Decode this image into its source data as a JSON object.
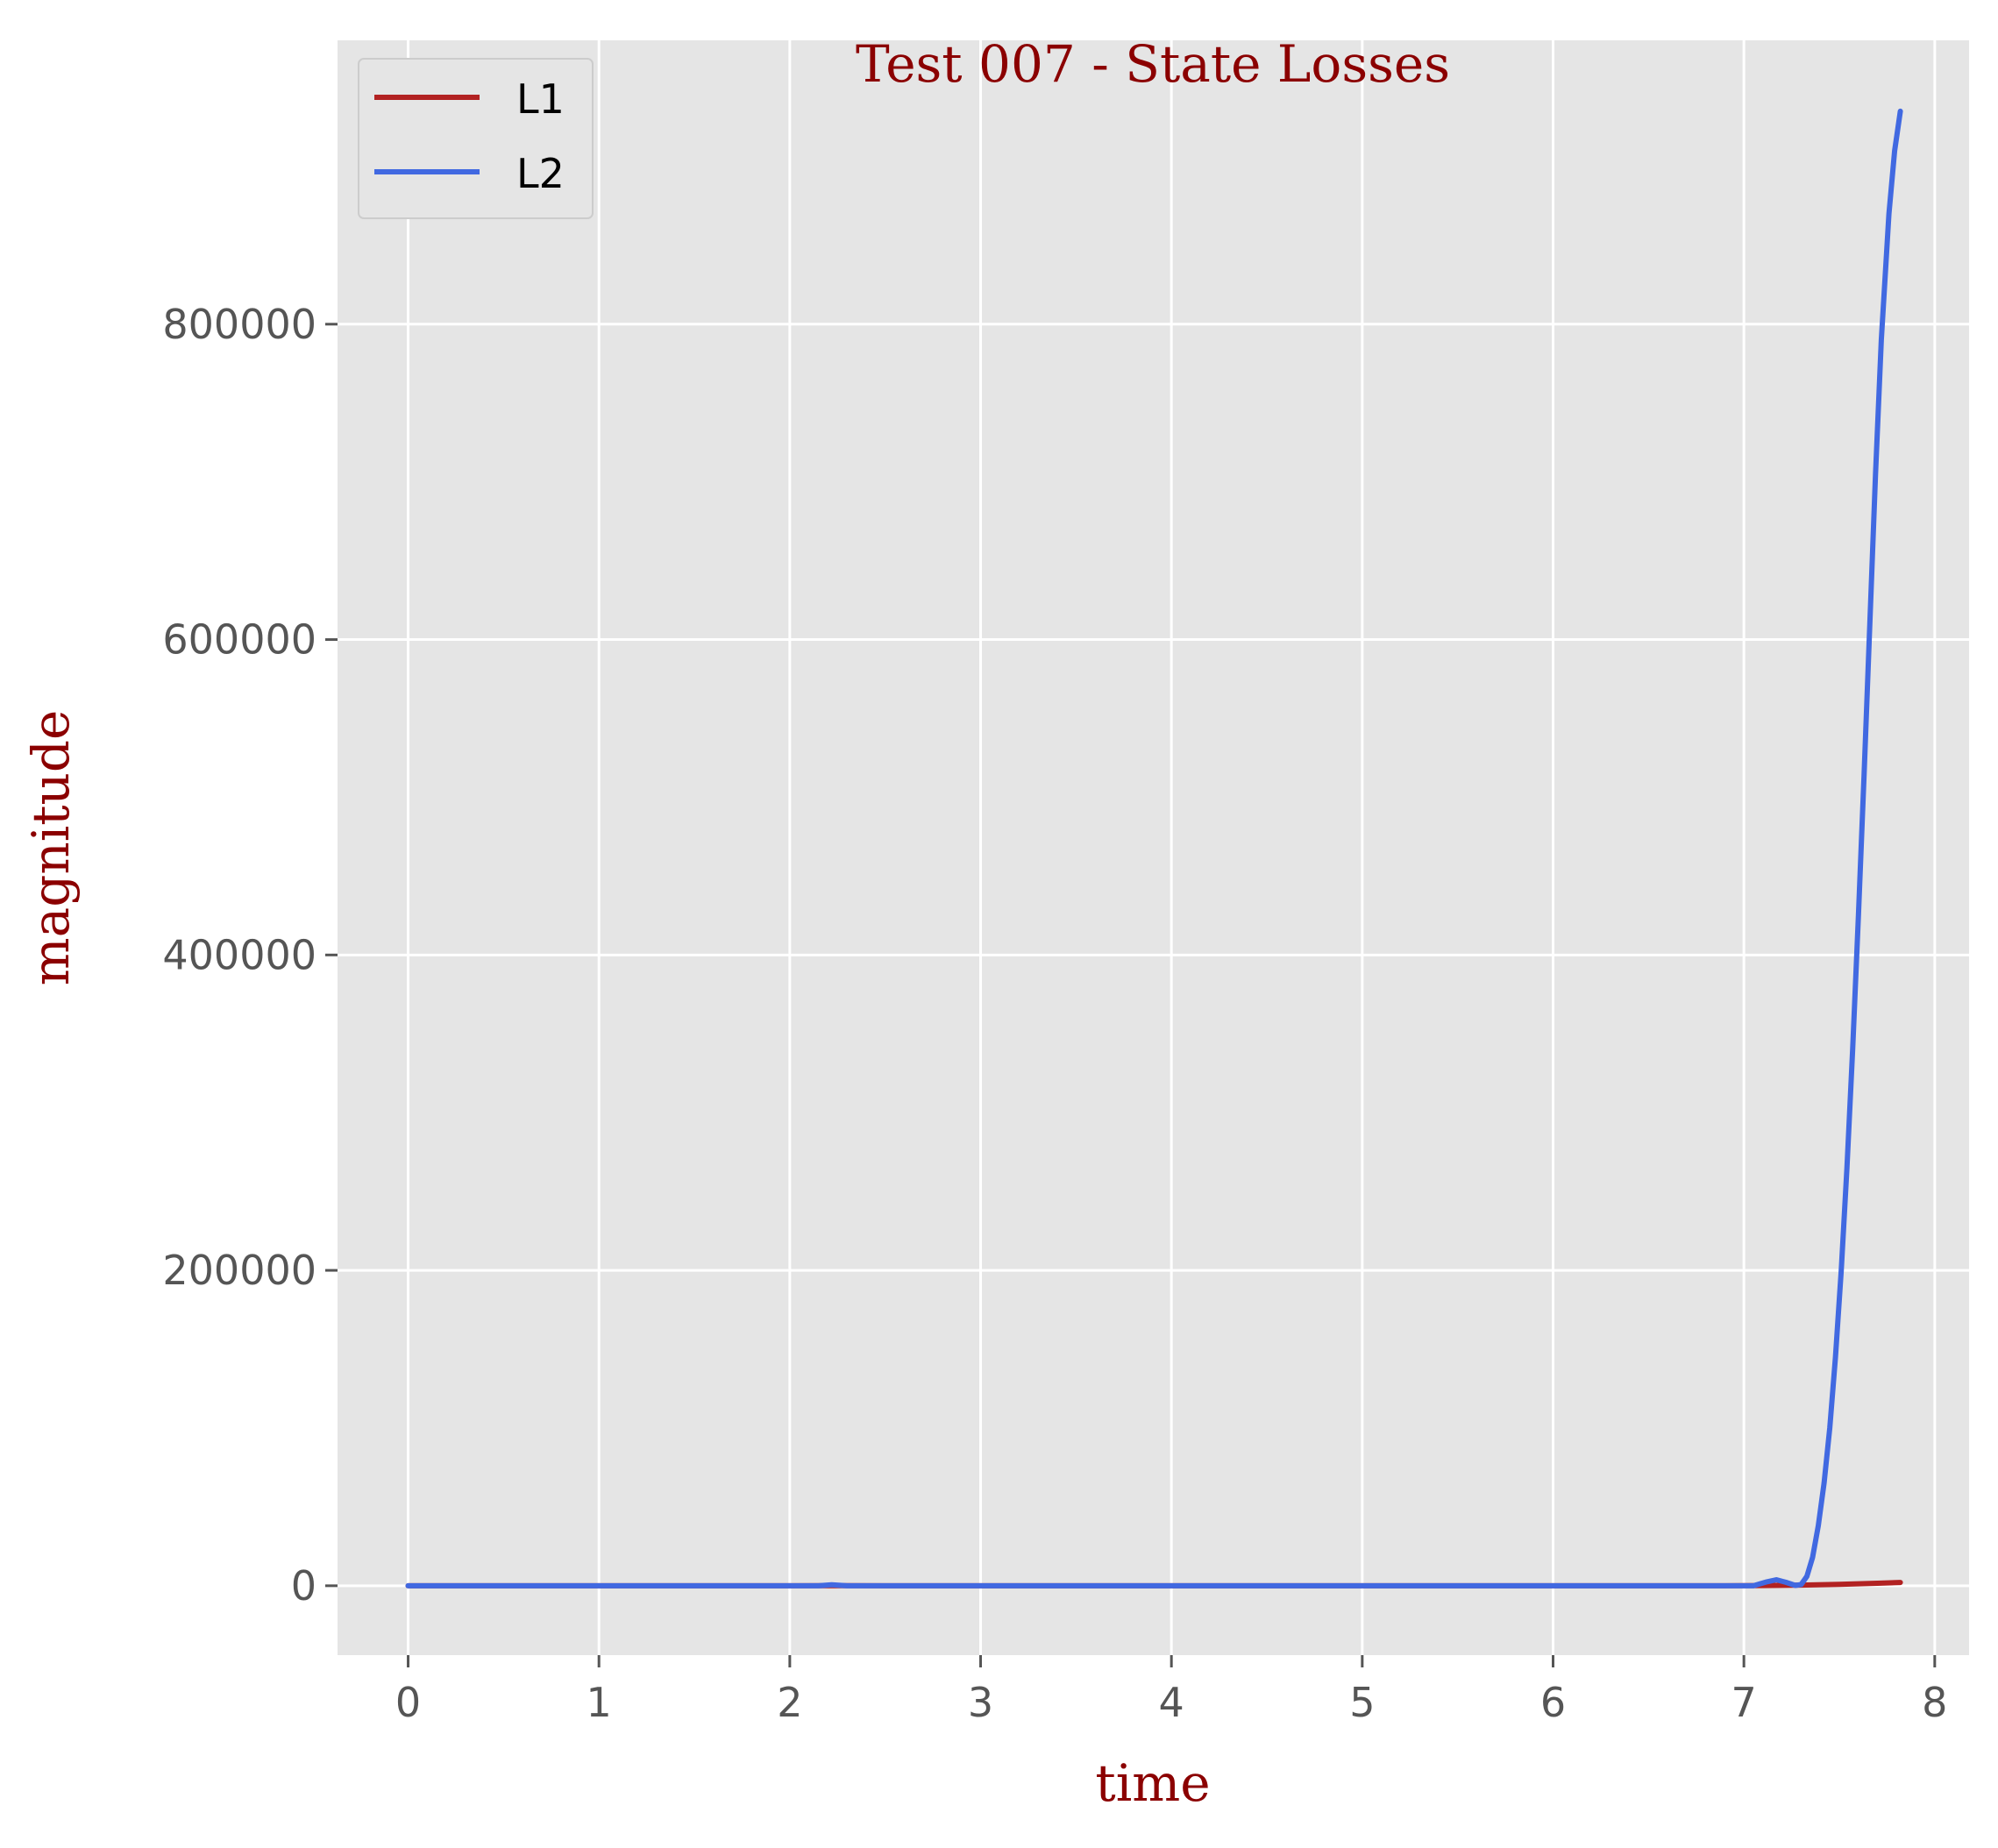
{
  "chart_data": {
    "type": "line",
    "title": "Test 007 - State Losses",
    "xlabel": "time",
    "ylabel": "magnitude",
    "xlim": [
      -0.37,
      8.18
    ],
    "ylim": [
      -44000,
      980000
    ],
    "xticks": [
      0,
      1,
      2,
      3,
      4,
      5,
      6,
      7,
      8
    ],
    "xtick_labels": [
      "0",
      "1",
      "2",
      "3",
      "4",
      "5",
      "6",
      "7",
      "8"
    ],
    "yticks": [
      0,
      200000,
      400000,
      600000,
      800000
    ],
    "ytick_labels": [
      "0",
      "200000",
      "400000",
      "600000",
      "800000"
    ],
    "grid": true,
    "legend_position": "top-left",
    "background": "#e5e5e5",
    "series": [
      {
        "name": "L1",
        "color": "#b22222",
        "points": [
          [
            0,
            0
          ],
          [
            2.0,
            0
          ],
          [
            2.25,
            100
          ],
          [
            2.5,
            0
          ],
          [
            6.9,
            0
          ],
          [
            7.1,
            150
          ],
          [
            7.3,
            400
          ],
          [
            7.5,
            900
          ],
          [
            7.7,
            1600
          ],
          [
            7.82,
            2100
          ]
        ]
      },
      {
        "name": "L2",
        "color": "#4169e1",
        "points": [
          [
            0,
            0
          ],
          [
            2.15,
            0
          ],
          [
            2.22,
            600
          ],
          [
            2.3,
            0
          ],
          [
            6.95,
            0
          ],
          [
            7.05,
            0
          ],
          [
            7.12,
            2500
          ],
          [
            7.17,
            3800
          ],
          [
            7.22,
            2200
          ],
          [
            7.27,
            200
          ],
          [
            7.3,
            800
          ],
          [
            7.33,
            6000
          ],
          [
            7.36,
            18000
          ],
          [
            7.39,
            38000
          ],
          [
            7.42,
            65000
          ],
          [
            7.45,
            100000
          ],
          [
            7.48,
            145000
          ],
          [
            7.51,
            200000
          ],
          [
            7.54,
            265000
          ],
          [
            7.57,
            340000
          ],
          [
            7.6,
            425000
          ],
          [
            7.63,
            515000
          ],
          [
            7.66,
            610000
          ],
          [
            7.69,
            705000
          ],
          [
            7.72,
            790000
          ],
          [
            7.76,
            870000
          ],
          [
            7.79,
            910000
          ],
          [
            7.82,
            935000
          ]
        ]
      }
    ]
  }
}
